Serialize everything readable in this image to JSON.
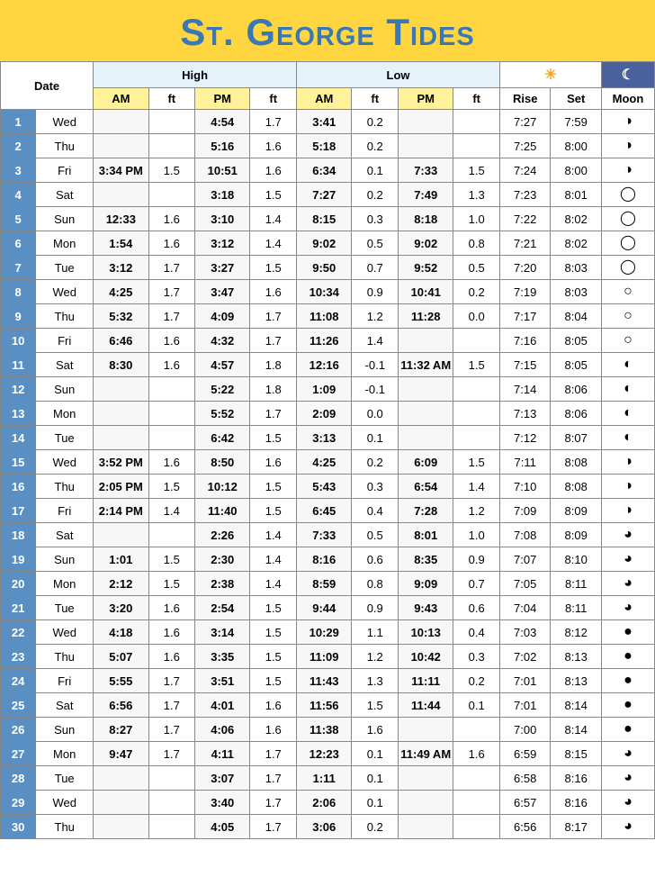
{
  "title": "St. George Tides",
  "headers": {
    "date": "Date",
    "high": "High",
    "low": "Low",
    "am": "AM",
    "ft": "ft",
    "pm": "PM",
    "rise": "Rise",
    "set": "Set",
    "moon": "Moon"
  },
  "colors": {
    "title_bg": "#ffd640",
    "title_text": "#3a78b5",
    "daynum_bg": "#5a8fc4",
    "sub_yellow": "#fff29a",
    "high_low_bg": "#e6f2fa",
    "moon_hdr_bg": "#4a619e"
  },
  "moon_glyphs": {
    "first-quarter": "◑",
    "waxing-gibbous-1": "◑",
    "waxing-gibbous-2": "◯",
    "full": "○",
    "waning-gibbous": "◐",
    "last-quarter": "◐",
    "waning-crescent": "◐",
    "new": "●",
    "waxing-crescent": "◑"
  },
  "rows": [
    {
      "n": "1",
      "dow": "Wed",
      "h_am": "",
      "h_am_ft": "",
      "h_pm": "4:54",
      "h_pm_ft": "1.7",
      "l_am": "3:41",
      "l_am_ft": "0.2",
      "l_pm": "",
      "l_pm_ft": "",
      "rise": "7:27",
      "set": "7:59",
      "moon": "◑"
    },
    {
      "n": "2",
      "dow": "Thu",
      "h_am": "",
      "h_am_ft": "",
      "h_pm": "5:16",
      "h_pm_ft": "1.6",
      "l_am": "5:18",
      "l_am_ft": "0.2",
      "l_pm": "",
      "l_pm_ft": "",
      "rise": "7:25",
      "set": "8:00",
      "moon": "◑"
    },
    {
      "n": "3",
      "dow": "Fri",
      "h_am": "3:34 PM",
      "h_am_ft": "1.5",
      "h_pm": "10:51",
      "h_pm_ft": "1.6",
      "l_am": "6:34",
      "l_am_ft": "0.1",
      "l_pm": "7:33",
      "l_pm_ft": "1.5",
      "rise": "7:24",
      "set": "8:00",
      "moon": "◑"
    },
    {
      "n": "4",
      "dow": "Sat",
      "h_am": "",
      "h_am_ft": "",
      "h_pm": "3:18",
      "h_pm_ft": "1.5",
      "l_am": "7:27",
      "l_am_ft": "0.2",
      "l_pm": "7:49",
      "l_pm_ft": "1.3",
      "rise": "7:23",
      "set": "8:01",
      "moon": "◯"
    },
    {
      "n": "5",
      "dow": "Sun",
      "h_am": "12:33",
      "h_am_ft": "1.6",
      "h_pm": "3:10",
      "h_pm_ft": "1.4",
      "l_am": "8:15",
      "l_am_ft": "0.3",
      "l_pm": "8:18",
      "l_pm_ft": "1.0",
      "rise": "7:22",
      "set": "8:02",
      "moon": "◯"
    },
    {
      "n": "6",
      "dow": "Mon",
      "h_am": "1:54",
      "h_am_ft": "1.6",
      "h_pm": "3:12",
      "h_pm_ft": "1.4",
      "l_am": "9:02",
      "l_am_ft": "0.5",
      "l_pm": "9:02",
      "l_pm_ft": "0.8",
      "rise": "7:21",
      "set": "8:02",
      "moon": "◯"
    },
    {
      "n": "7",
      "dow": "Tue",
      "h_am": "3:12",
      "h_am_ft": "1.7",
      "h_pm": "3:27",
      "h_pm_ft": "1.5",
      "l_am": "9:50",
      "l_am_ft": "0.7",
      "l_pm": "9:52",
      "l_pm_ft": "0.5",
      "rise": "7:20",
      "set": "8:03",
      "moon": "◯"
    },
    {
      "n": "8",
      "dow": "Wed",
      "h_am": "4:25",
      "h_am_ft": "1.7",
      "h_pm": "3:47",
      "h_pm_ft": "1.6",
      "l_am": "10:34",
      "l_am_ft": "0.9",
      "l_pm": "10:41",
      "l_pm_ft": "0.2",
      "rise": "7:19",
      "set": "8:03",
      "moon": "○"
    },
    {
      "n": "9",
      "dow": "Thu",
      "h_am": "5:32",
      "h_am_ft": "1.7",
      "h_pm": "4:09",
      "h_pm_ft": "1.7",
      "l_am": "11:08",
      "l_am_ft": "1.2",
      "l_pm": "11:28",
      "l_pm_ft": "0.0",
      "rise": "7:17",
      "set": "8:04",
      "moon": "○"
    },
    {
      "n": "10",
      "dow": "Fri",
      "h_am": "6:46",
      "h_am_ft": "1.6",
      "h_pm": "4:32",
      "h_pm_ft": "1.7",
      "l_am": "11:26",
      "l_am_ft": "1.4",
      "l_pm": "",
      "l_pm_ft": "",
      "rise": "7:16",
      "set": "8:05",
      "moon": "○"
    },
    {
      "n": "11",
      "dow": "Sat",
      "h_am": "8:30",
      "h_am_ft": "1.6",
      "h_pm": "4:57",
      "h_pm_ft": "1.8",
      "l_am": "12:16",
      "l_am_ft": "-0.1",
      "l_pm": "11:32 AM",
      "l_pm_ft": "1.5",
      "rise": "7:15",
      "set": "8:05",
      "moon": "◐"
    },
    {
      "n": "12",
      "dow": "Sun",
      "h_am": "",
      "h_am_ft": "",
      "h_pm": "5:22",
      "h_pm_ft": "1.8",
      "l_am": "1:09",
      "l_am_ft": "-0.1",
      "l_pm": "",
      "l_pm_ft": "",
      "rise": "7:14",
      "set": "8:06",
      "moon": "◐"
    },
    {
      "n": "13",
      "dow": "Mon",
      "h_am": "",
      "h_am_ft": "",
      "h_pm": "5:52",
      "h_pm_ft": "1.7",
      "l_am": "2:09",
      "l_am_ft": "0.0",
      "l_pm": "",
      "l_pm_ft": "",
      "rise": "7:13",
      "set": "8:06",
      "moon": "◐"
    },
    {
      "n": "14",
      "dow": "Tue",
      "h_am": "",
      "h_am_ft": "",
      "h_pm": "6:42",
      "h_pm_ft": "1.5",
      "l_am": "3:13",
      "l_am_ft": "0.1",
      "l_pm": "",
      "l_pm_ft": "",
      "rise": "7:12",
      "set": "8:07",
      "moon": "◐"
    },
    {
      "n": "15",
      "dow": "Wed",
      "h_am": "3:52 PM",
      "h_am_ft": "1.6",
      "h_pm": "8:50",
      "h_pm_ft": "1.6",
      "l_am": "4:25",
      "l_am_ft": "0.2",
      "l_pm": "6:09",
      "l_pm_ft": "1.5",
      "rise": "7:11",
      "set": "8:08",
      "moon": "◑"
    },
    {
      "n": "16",
      "dow": "Thu",
      "h_am": "2:05 PM",
      "h_am_ft": "1.5",
      "h_pm": "10:12",
      "h_pm_ft": "1.5",
      "l_am": "5:43",
      "l_am_ft": "0.3",
      "l_pm": "6:54",
      "l_pm_ft": "1.4",
      "rise": "7:10",
      "set": "8:08",
      "moon": "◑"
    },
    {
      "n": "17",
      "dow": "Fri",
      "h_am": "2:14 PM",
      "h_am_ft": "1.4",
      "h_pm": "11:40",
      "h_pm_ft": "1.5",
      "l_am": "6:45",
      "l_am_ft": "0.4",
      "l_pm": "7:28",
      "l_pm_ft": "1.2",
      "rise": "7:09",
      "set": "8:09",
      "moon": "◑"
    },
    {
      "n": "18",
      "dow": "Sat",
      "h_am": "",
      "h_am_ft": "",
      "h_pm": "2:26",
      "h_pm_ft": "1.4",
      "l_am": "7:33",
      "l_am_ft": "0.5",
      "l_pm": "8:01",
      "l_pm_ft": "1.0",
      "rise": "7:08",
      "set": "8:09",
      "moon": "◕"
    },
    {
      "n": "19",
      "dow": "Sun",
      "h_am": "1:01",
      "h_am_ft": "1.5",
      "h_pm": "2:30",
      "h_pm_ft": "1.4",
      "l_am": "8:16",
      "l_am_ft": "0.6",
      "l_pm": "8:35",
      "l_pm_ft": "0.9",
      "rise": "7:07",
      "set": "8:10",
      "moon": "◕"
    },
    {
      "n": "20",
      "dow": "Mon",
      "h_am": "2:12",
      "h_am_ft": "1.5",
      "h_pm": "2:38",
      "h_pm_ft": "1.4",
      "l_am": "8:59",
      "l_am_ft": "0.8",
      "l_pm": "9:09",
      "l_pm_ft": "0.7",
      "rise": "7:05",
      "set": "8:11",
      "moon": "◕"
    },
    {
      "n": "21",
      "dow": "Tue",
      "h_am": "3:20",
      "h_am_ft": "1.6",
      "h_pm": "2:54",
      "h_pm_ft": "1.5",
      "l_am": "9:44",
      "l_am_ft": "0.9",
      "l_pm": "9:43",
      "l_pm_ft": "0.6",
      "rise": "7:04",
      "set": "8:11",
      "moon": "◕"
    },
    {
      "n": "22",
      "dow": "Wed",
      "h_am": "4:18",
      "h_am_ft": "1.6",
      "h_pm": "3:14",
      "h_pm_ft": "1.5",
      "l_am": "10:29",
      "l_am_ft": "1.1",
      "l_pm": "10:13",
      "l_pm_ft": "0.4",
      "rise": "7:03",
      "set": "8:12",
      "moon": "●"
    },
    {
      "n": "23",
      "dow": "Thu",
      "h_am": "5:07",
      "h_am_ft": "1.6",
      "h_pm": "3:35",
      "h_pm_ft": "1.5",
      "l_am": "11:09",
      "l_am_ft": "1.2",
      "l_pm": "10:42",
      "l_pm_ft": "0.3",
      "rise": "7:02",
      "set": "8:13",
      "moon": "●"
    },
    {
      "n": "24",
      "dow": "Fri",
      "h_am": "5:55",
      "h_am_ft": "1.7",
      "h_pm": "3:51",
      "h_pm_ft": "1.5",
      "l_am": "11:43",
      "l_am_ft": "1.3",
      "l_pm": "11:11",
      "l_pm_ft": "0.2",
      "rise": "7:01",
      "set": "8:13",
      "moon": "●"
    },
    {
      "n": "25",
      "dow": "Sat",
      "h_am": "6:56",
      "h_am_ft": "1.7",
      "h_pm": "4:01",
      "h_pm_ft": "1.6",
      "l_am": "11:56",
      "l_am_ft": "1.5",
      "l_pm": "11:44",
      "l_pm_ft": "0.1",
      "rise": "7:01",
      "set": "8:14",
      "moon": "●"
    },
    {
      "n": "26",
      "dow": "Sun",
      "h_am": "8:27",
      "h_am_ft": "1.7",
      "h_pm": "4:06",
      "h_pm_ft": "1.6",
      "l_am": "11:38",
      "l_am_ft": "1.6",
      "l_pm": "",
      "l_pm_ft": "",
      "rise": "7:00",
      "set": "8:14",
      "moon": "●"
    },
    {
      "n": "27",
      "dow": "Mon",
      "h_am": "9:47",
      "h_am_ft": "1.7",
      "h_pm": "4:11",
      "h_pm_ft": "1.7",
      "l_am": "12:23",
      "l_am_ft": "0.1",
      "l_pm": "11:49 AM",
      "l_pm_ft": "1.6",
      "rise": "6:59",
      "set": "8:15",
      "moon": "◕"
    },
    {
      "n": "28",
      "dow": "Tue",
      "h_am": "",
      "h_am_ft": "",
      "h_pm": "3:07",
      "h_pm_ft": "1.7",
      "l_am": "1:11",
      "l_am_ft": "0.1",
      "l_pm": "",
      "l_pm_ft": "",
      "rise": "6:58",
      "set": "8:16",
      "moon": "◕"
    },
    {
      "n": "29",
      "dow": "Wed",
      "h_am": "",
      "h_am_ft": "",
      "h_pm": "3:40",
      "h_pm_ft": "1.7",
      "l_am": "2:06",
      "l_am_ft": "0.1",
      "l_pm": "",
      "l_pm_ft": "",
      "rise": "6:57",
      "set": "8:16",
      "moon": "◕"
    },
    {
      "n": "30",
      "dow": "Thu",
      "h_am": "",
      "h_am_ft": "",
      "h_pm": "4:05",
      "h_pm_ft": "1.7",
      "l_am": "3:06",
      "l_am_ft": "0.2",
      "l_pm": "",
      "l_pm_ft": "",
      "rise": "6:56",
      "set": "8:17",
      "moon": "◕"
    }
  ]
}
